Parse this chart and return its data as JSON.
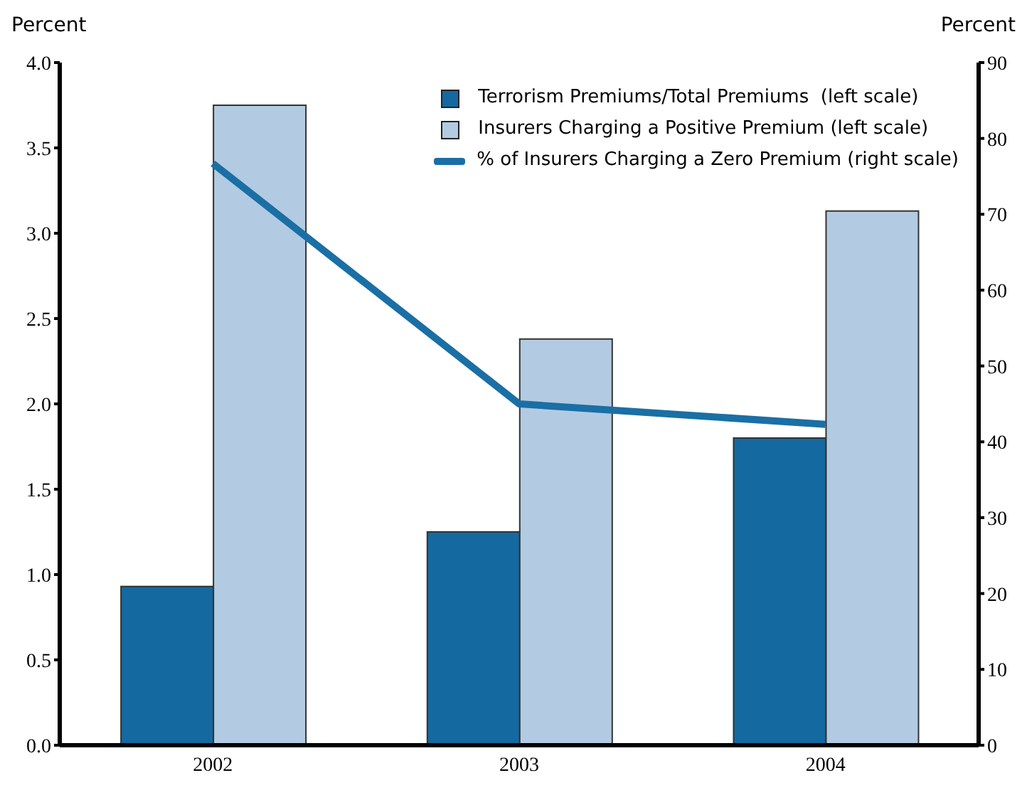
{
  "chart_data": {
    "type": "bar",
    "categories": [
      "2002",
      "2003",
      "2004"
    ],
    "ylabel": "Percent",
    "y2label": "Percent",
    "series": [
      {
        "name": "Terrorism Premiums/Total Premiums  (left scale)",
        "color": "#1469a0",
        "values": [
          0.93,
          1.25,
          1.8
        ]
      },
      {
        "name": "Insurers Charging a Positive Premium (left scale)",
        "color": "#b2cbe2",
        "values": [
          3.75,
          2.38,
          3.13
        ]
      },
      {
        "name": "% of Insurers Charging a Zero Premium (right scale)",
        "type": "line",
        "axis": "y2",
        "color": "#1a6fa5",
        "values": [
          76.7,
          45,
          42.3
        ]
      }
    ],
    "ylim": [
      0,
      4
    ],
    "yticks": [
      {
        "value": 0,
        "label": "0.0"
      },
      {
        "value": 0.5,
        "label": "0.5"
      },
      {
        "value": 1,
        "label": "1.0"
      },
      {
        "value": 1.5,
        "label": "1.5"
      },
      {
        "value": 2,
        "label": "2.0"
      },
      {
        "value": 2.5,
        "label": "2.5"
      },
      {
        "value": 3,
        "label": "3.0"
      },
      {
        "value": 3.5,
        "label": "3.5"
      },
      {
        "value": 4,
        "label": "4.0"
      }
    ],
    "y2lim": [
      0,
      90
    ],
    "y2ticks": [
      0,
      10,
      20,
      30,
      40,
      50,
      60,
      70,
      80,
      90
    ],
    "legend": "top right",
    "marker": "none",
    "line_style": "solid"
  }
}
